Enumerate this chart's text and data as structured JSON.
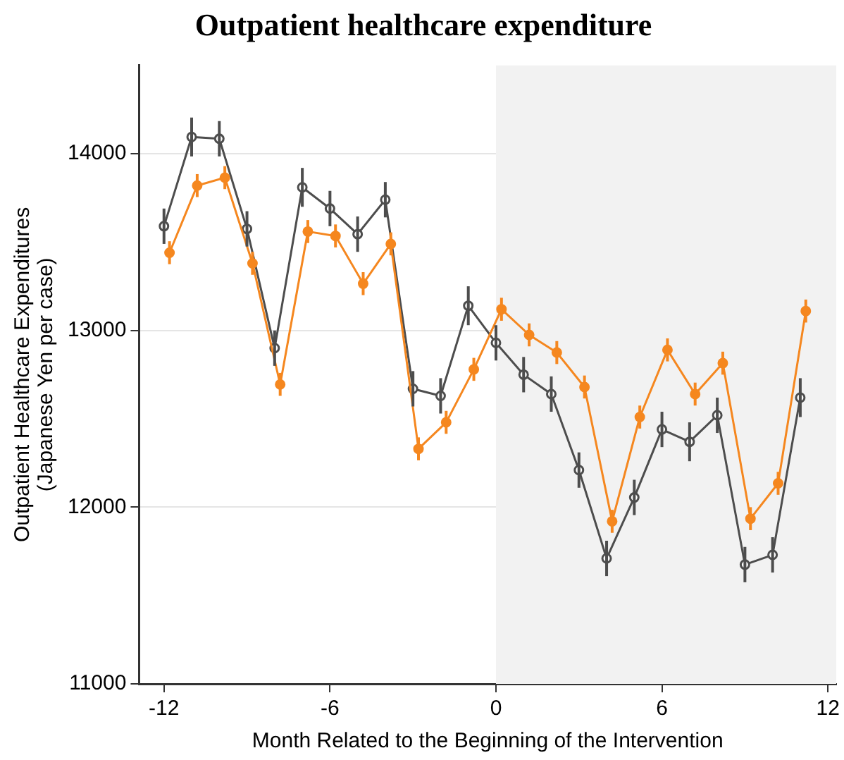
{
  "chart_data": {
    "type": "line",
    "title": "Outpatient healthcare expenditure",
    "xlabel": "Month Related to the Beginning of the Intervention",
    "ylabel": "Outpatient Healthcare Expenditures\n(Japanese Yen per case)",
    "xlim": [
      -12.9,
      12.3
    ],
    "xticks": [
      -12,
      -6,
      0,
      6,
      12
    ],
    "ylim": [
      11000,
      14500
    ],
    "yticks": [
      11000,
      12000,
      13000,
      14000
    ],
    "grid": "y",
    "legend": false,
    "marker": "circle",
    "line_style": "solid",
    "bands": [
      {
        "axis": "x",
        "from": 0,
        "to": 12.3,
        "color": "#f2f2f2"
      }
    ],
    "series": [
      {
        "color": "#4d4d4d",
        "x": [
          -12,
          -11,
          -10,
          -9,
          -8,
          -7,
          -6,
          -5,
          -4,
          -3,
          -2,
          -1,
          0,
          1,
          2,
          3,
          4,
          5,
          6,
          7,
          8,
          9,
          10,
          11
        ],
        "values": [
          13590,
          14095,
          14085,
          13575,
          12900,
          13810,
          13690,
          13545,
          13740,
          12670,
          12630,
          13140,
          12930,
          12750,
          12640,
          12210,
          11710,
          12055,
          12440,
          12370,
          12520,
          11675,
          11730,
          12620
        ],
        "errors": [
          100,
          110,
          100,
          100,
          100,
          110,
          100,
          100,
          100,
          100,
          100,
          110,
          100,
          100,
          100,
          100,
          100,
          100,
          100,
          110,
          100,
          100,
          100,
          110
        ]
      },
      {
        "color": "#f5871f",
        "x": [
          -11.8,
          -10.8,
          -9.8,
          -8.8,
          -7.8,
          -6.8,
          -5.8,
          -4.8,
          -3.8,
          -2.8,
          -1.8,
          -0.8,
          0.2,
          1.2,
          2.2,
          3.2,
          4.2,
          5.2,
          6.2,
          7.2,
          8.2,
          9.2,
          10.2,
          11.2
        ],
        "values": [
          13440,
          13820,
          13865,
          13380,
          12695,
          13560,
          13535,
          13265,
          13490,
          12330,
          12480,
          12780,
          13120,
          12975,
          12875,
          12680,
          11920,
          12510,
          12890,
          12640,
          12815,
          11935,
          12135,
          13110
        ],
        "errors": [
          65,
          65,
          65,
          65,
          65,
          65,
          65,
          65,
          65,
          65,
          65,
          65,
          65,
          65,
          65,
          65,
          65,
          65,
          65,
          65,
          65,
          65,
          65,
          65
        ]
      }
    ]
  }
}
